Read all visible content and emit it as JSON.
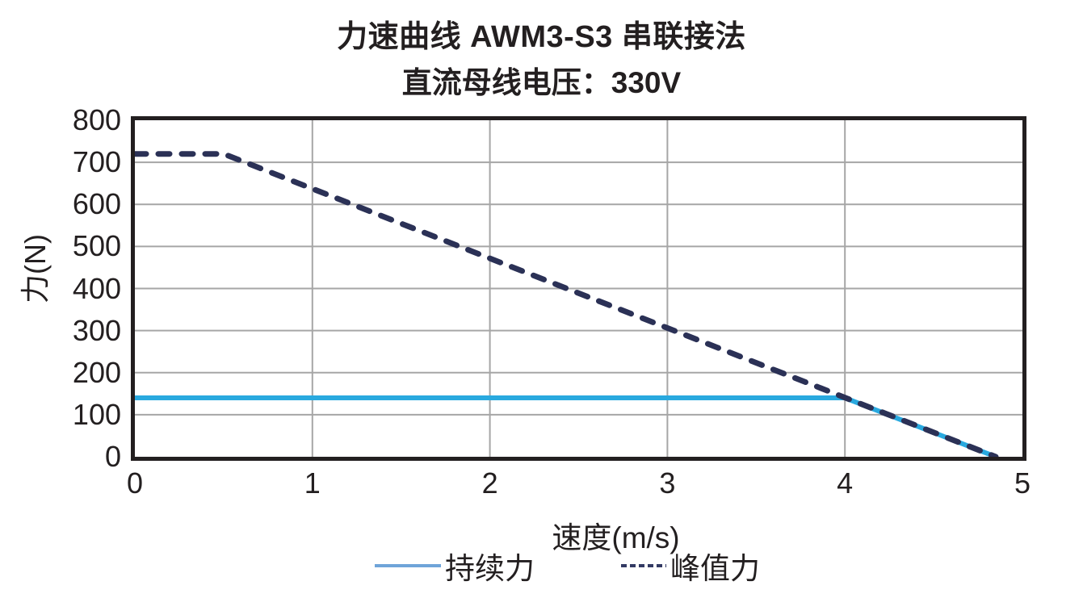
{
  "chart_data": {
    "type": "line",
    "title": "力速曲线 AWM3-S3 串联接法",
    "subtitle": "直流母线电压：330V",
    "xlabel": "速度(m/s)",
    "ylabel": "力(N)",
    "xlim": [
      0,
      5
    ],
    "ylim": [
      0,
      800
    ],
    "x_ticks": [
      0,
      1,
      2,
      3,
      4,
      5
    ],
    "y_ticks": [
      0,
      100,
      200,
      300,
      400,
      500,
      600,
      700,
      800
    ],
    "grid": true,
    "legend_position": "bottom",
    "series": [
      {
        "name": "持续力",
        "style": "solid",
        "color": "#29A9DF",
        "legend_color": "#6FA4D9",
        "width": 6,
        "points": [
          [
            0,
            140
          ],
          [
            4.0,
            140
          ],
          [
            4.85,
            0
          ]
        ]
      },
      {
        "name": "峰值力",
        "style": "dashed",
        "color": "#2B3156",
        "legend_color": "#333A63",
        "width": 7,
        "points": [
          [
            0,
            720
          ],
          [
            0.5,
            720
          ],
          [
            4.85,
            0
          ]
        ]
      }
    ],
    "colors": {
      "text": "#231f20",
      "frame": "#231f20",
      "gridline": "#a6a6a6",
      "background": "#ffffff"
    }
  }
}
